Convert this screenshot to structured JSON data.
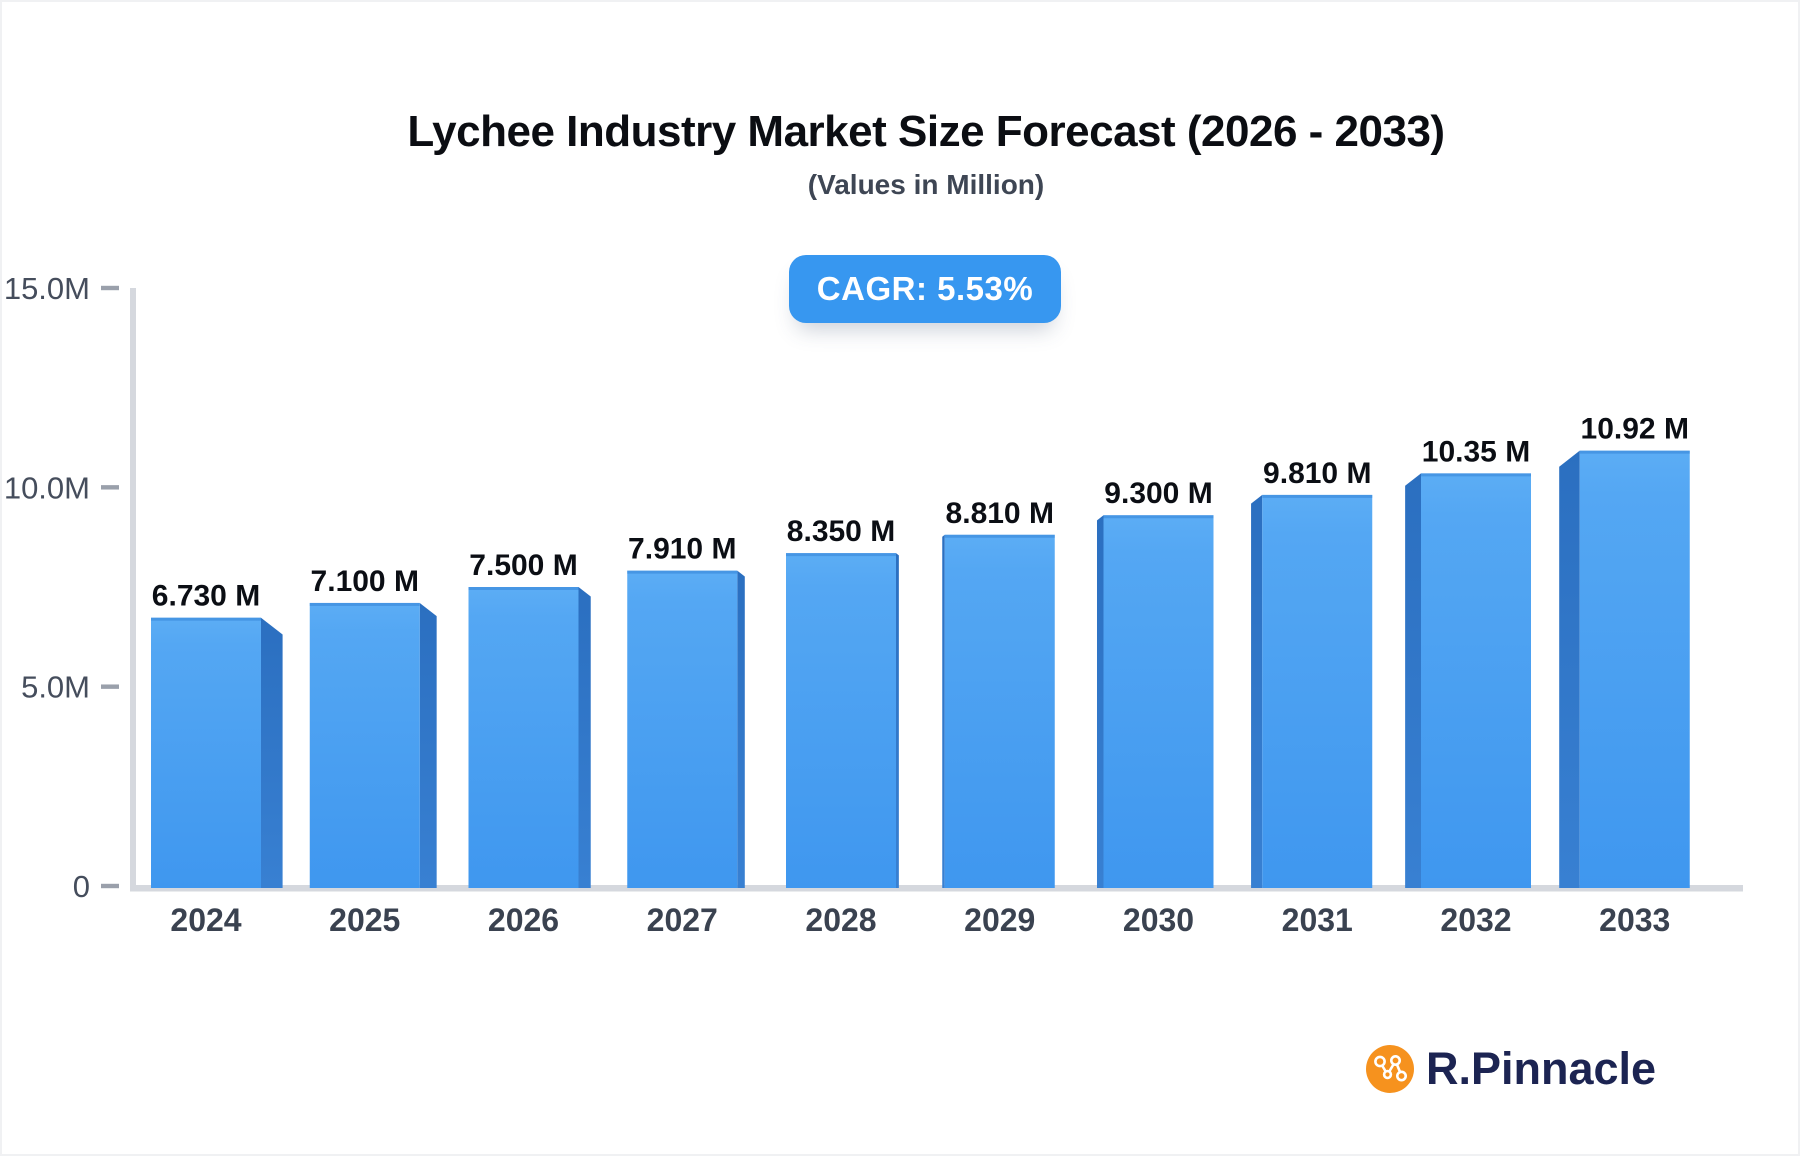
{
  "header": {
    "title": "Lychee Industry Market Size Forecast (2026 - 2033)",
    "subtitle": "(Values in Million)",
    "cagr_badge": "CAGR: 5.53%"
  },
  "chart_data": {
    "type": "bar",
    "title": "Lychee Industry Market Size Forecast (2026 - 2033)",
    "subtitle": "(Values in Million)",
    "cagr": "5.53%",
    "unit": "Million",
    "categories": [
      "2024",
      "2025",
      "2026",
      "2027",
      "2028",
      "2029",
      "2030",
      "2031",
      "2032",
      "2033"
    ],
    "values": [
      6.73,
      7.1,
      7.5,
      7.91,
      8.35,
      8.81,
      9.3,
      9.81,
      10.35,
      10.92
    ],
    "value_labels": [
      "6.730 M",
      "7.100 M",
      "7.500 M",
      "7.910 M",
      "8.350 M",
      "8.810 M",
      "9.300 M",
      "9.810 M",
      "10.35 M",
      "10.92 M"
    ],
    "y_ticks": [
      {
        "value": 0,
        "label": "0"
      },
      {
        "value": 5,
        "label": "5.0M"
      },
      {
        "value": 10,
        "label": "10.0M"
      },
      {
        "value": 15,
        "label": "15.0M"
      }
    ],
    "ylim": [
      0,
      15
    ],
    "grid": false,
    "legend": "none",
    "style": "3d-bars-central-perspective",
    "colors": {
      "bar_face_top": "#5cadf5",
      "bar_face_mid": "#54a7f3",
      "bar_face_bottom": "#3f97ef",
      "bar_top_edge": "#3987d9",
      "bar_side_top": "#2b6fc0",
      "bar_side_bottom": "#3880d2",
      "axis_line": "#d5d8de",
      "tick": "#9aa0ab",
      "y_label": "#454d5c",
      "x_label": "#3a4250",
      "value_label": "#0b0e14",
      "badge_bg": "#3797f0"
    }
  },
  "branding": {
    "logo_text": "R.Pinnacle",
    "logo_icon": "network-nodes-icon",
    "logo_icon_color": "#f6921e",
    "logo_text_color": "#1c2452"
  }
}
